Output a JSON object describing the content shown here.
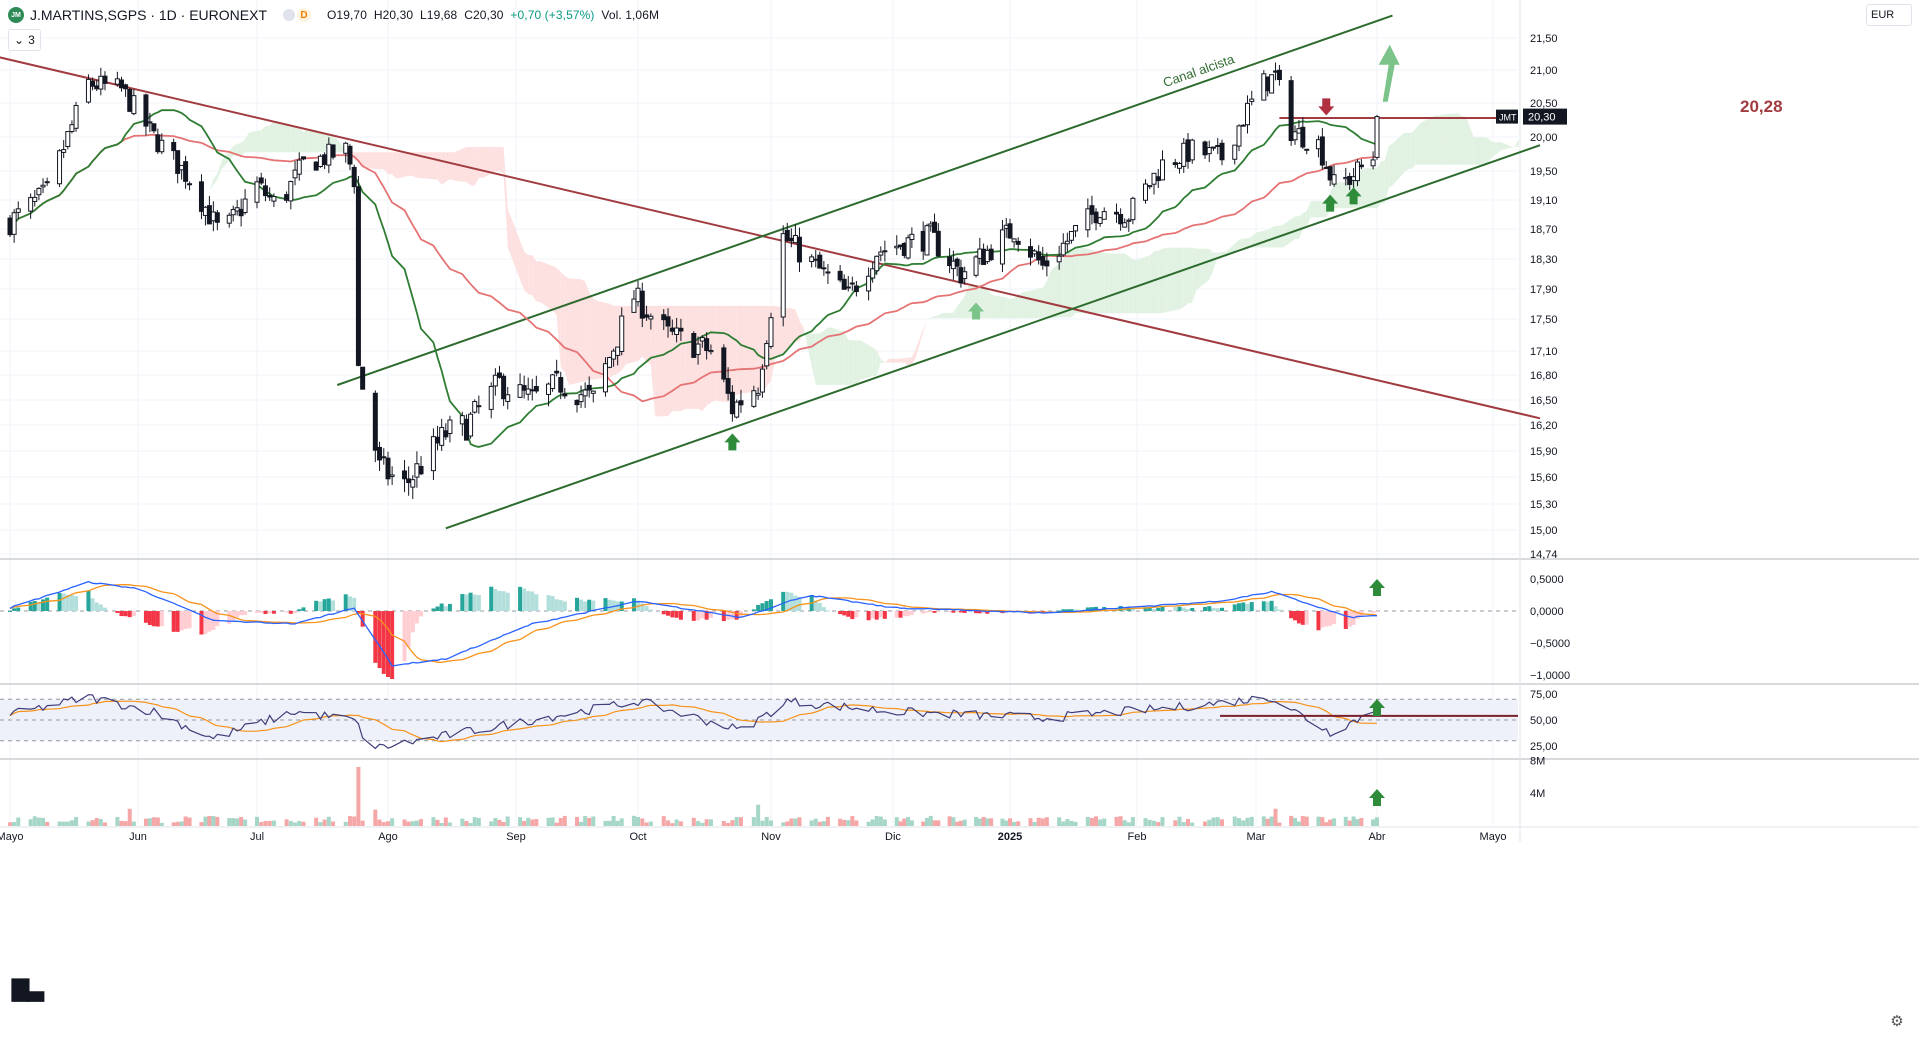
{
  "symbol": {
    "badge": "JM",
    "title": "J.MARTINS,SGPS · 1D · EURONEXT",
    "interval_badge": "D",
    "open_label": "O19,70",
    "high_label": "H20,30",
    "low_label": "L19,68",
    "close_label": "C20,30",
    "change_label": "+0,70 (+3,57%)",
    "volume_label": "Vol. 1,06M",
    "indicator_count": "3"
  },
  "currency": "EUR",
  "colors": {
    "up": "#131722",
    "down": "#131722",
    "sma_fast": "#2e7d32",
    "sma_slow": "#e57373",
    "downtrend": "#a23b40",
    "channel": "#2e6b2e",
    "hline": "#a23b40",
    "arrow_green": "#2e8b3a",
    "arrow_light": "#7cc48a",
    "arrow_red": "#b03040",
    "cloud_red": "#fde0e0",
    "cloud_green": "#e1f2e3",
    "hist_teal": "#26a69a",
    "hist_red": "#f23645",
    "macd_blue": "#2962ff",
    "signal_orange": "#f7931a",
    "rsi_line": "#3f3d7a",
    "rsi_ma": "#f7931a",
    "rsi_band": "#eef1fa"
  },
  "icons": {
    "settings": "gear-icon",
    "collapse": "chevron-down-icon",
    "logo": "tradingview-logo"
  },
  "chart_data": [
    {
      "type": "candlestick",
      "pane": "price",
      "x_axis": {
        "tick_labels": [
          "Mayo",
          "Jun",
          "Jul",
          "Ago",
          "Sep",
          "Oct",
          "Nov",
          "Dic",
          "2025",
          "Feb",
          "Mar",
          "Abr",
          "Mayo"
        ]
      },
      "y_axis": {
        "tick_labels": [
          "21,50",
          "21,00",
          "20,50",
          "20,00",
          "19,50",
          "19,10",
          "18,70",
          "18,30",
          "17,90",
          "17,50",
          "17,10",
          "16,80",
          "16,50",
          "16,20",
          "15,90",
          "15,60",
          "15,30",
          "15,00",
          "14,74"
        ],
        "range": [
          14.74,
          21.6
        ]
      },
      "price_anchors": [
        {
          "x": "2024-05-01",
          "y": 18.8
        },
        {
          "x": "2024-05-10",
          "y": 19.2
        },
        {
          "x": "2024-05-20",
          "y": 20.8
        },
        {
          "x": "2024-05-28",
          "y": 20.7
        },
        {
          "x": "2024-06-05",
          "y": 20.0
        },
        {
          "x": "2024-06-14",
          "y": 19.4
        },
        {
          "x": "2024-06-22",
          "y": 18.6
        },
        {
          "x": "2024-07-01",
          "y": 19.3
        },
        {
          "x": "2024-07-06",
          "y": 19.0
        },
        {
          "x": "2024-07-12",
          "y": 19.6
        },
        {
          "x": "2024-07-22",
          "y": 19.8
        },
        {
          "x": "2024-07-24",
          "y": 19.4
        },
        {
          "x": "2024-07-25",
          "y": 16.9
        },
        {
          "x": "2024-07-30",
          "y": 15.7
        },
        {
          "x": "2024-08-05",
          "y": 15.5
        },
        {
          "x": "2024-08-15",
          "y": 16.1
        },
        {
          "x": "2024-08-20",
          "y": 16.2
        },
        {
          "x": "2024-08-28",
          "y": 16.7
        },
        {
          "x": "2024-09-05",
          "y": 16.5
        },
        {
          "x": "2024-09-12",
          "y": 16.7
        },
        {
          "x": "2024-09-20",
          "y": 16.5
        },
        {
          "x": "2024-09-30",
          "y": 17.8
        },
        {
          "x": "2024-10-08",
          "y": 17.3
        },
        {
          "x": "2024-10-18",
          "y": 17.1
        },
        {
          "x": "2024-10-23",
          "y": 16.4
        },
        {
          "x": "2024-10-29",
          "y": 16.7
        },
        {
          "x": "2024-11-04",
          "y": 18.6
        },
        {
          "x": "2024-11-12",
          "y": 18.2
        },
        {
          "x": "2024-11-20",
          "y": 17.8
        },
        {
          "x": "2024-11-27",
          "y": 18.4
        },
        {
          "x": "2024-12-03",
          "y": 18.5
        },
        {
          "x": "2024-12-11",
          "y": 18.6
        },
        {
          "x": "2024-12-19",
          "y": 18.1
        },
        {
          "x": "2025-01-02",
          "y": 18.7
        },
        {
          "x": "2025-01-09",
          "y": 18.2
        },
        {
          "x": "2025-01-16",
          "y": 18.6
        },
        {
          "x": "2025-01-23",
          "y": 19.0
        },
        {
          "x": "2025-01-30",
          "y": 18.9
        },
        {
          "x": "2025-02-07",
          "y": 19.6
        },
        {
          "x": "2025-02-14",
          "y": 19.8
        },
        {
          "x": "2025-02-21",
          "y": 19.7
        },
        {
          "x": "2025-02-27",
          "y": 20.4
        },
        {
          "x": "2025-03-03",
          "y": 20.8
        },
        {
          "x": "2025-03-06",
          "y": 20.9
        },
        {
          "x": "2025-03-10",
          "y": 20.1
        },
        {
          "x": "2025-03-17",
          "y": 19.9
        },
        {
          "x": "2025-03-21",
          "y": 19.3
        },
        {
          "x": "2025-03-25",
          "y": 19.4
        },
        {
          "x": "2025-03-31",
          "y": 19.7
        },
        {
          "x": "2025-04-01",
          "y": 20.3
        }
      ],
      "last_close": 20.3,
      "last_label": "20,30",
      "symbol_tag": "JMT",
      "overlays": [
        {
          "name": "SMA 20",
          "kind": "line"
        },
        {
          "name": "SMA 50",
          "kind": "line"
        },
        {
          "name": "Ichimoku cloud",
          "kind": "area"
        }
      ],
      "drawings": {
        "downtrend_line": {
          "from": {
            "x": "2024-04-25",
            "y": 21.25
          },
          "to": {
            "x": "2025-05-12",
            "y": 16.28
          }
        },
        "channel_upper": {
          "from": {
            "x": "2024-07-20",
            "y": 16.68
          },
          "to": {
            "x": "2025-04-05",
            "y": 21.85
          }
        },
        "channel_lower": {
          "from": {
            "x": "2024-08-15",
            "y": 15.02
          },
          "to": {
            "x": "2025-05-12",
            "y": 19.88
          }
        },
        "channel_label": "Canal alcista",
        "resistance": {
          "y": 20.28,
          "label": "20,28",
          "from_x": "2025-03-07",
          "to_x": "2025-05-12"
        },
        "arrows": [
          {
            "x": "2024-10-23",
            "y": 16.0,
            "dir": "up",
            "style": "green"
          },
          {
            "x": "2024-12-23",
            "y": 17.6,
            "dir": "up",
            "style": "light"
          },
          {
            "x": "2025-03-20",
            "y": 19.05,
            "dir": "up",
            "style": "green"
          },
          {
            "x": "2025-03-26",
            "y": 19.15,
            "dir": "up",
            "style": "green"
          },
          {
            "x": "2025-03-19",
            "y": 20.45,
            "dir": "down",
            "style": "red"
          },
          {
            "x": "2025-04-03",
            "y": 20.7,
            "dir": "up-large",
            "style": "light"
          }
        ]
      }
    },
    {
      "type": "line",
      "pane": "MACD",
      "y_axis": {
        "tick_labels": [
          "0,5000",
          "0,0000",
          "−0,5000",
          "−1,0000"
        ],
        "range": [
          -1.05,
          0.62
        ]
      },
      "series": [
        {
          "x": "2024-05-01",
          "macd": 0.05
        },
        {
          "x": "2024-05-20",
          "macd": 0.45
        },
        {
          "x": "2024-06-01",
          "macd": 0.35
        },
        {
          "x": "2024-06-20",
          "macd": -0.15
        },
        {
          "x": "2024-07-10",
          "macd": -0.2
        },
        {
          "x": "2024-07-24",
          "macd": 0.05
        },
        {
          "x": "2024-08-02",
          "macd": -0.85
        },
        {
          "x": "2024-08-15",
          "macd": -0.75
        },
        {
          "x": "2024-09-05",
          "macd": -0.2
        },
        {
          "x": "2024-10-01",
          "macd": 0.15
        },
        {
          "x": "2024-10-25",
          "macd": -0.1
        },
        {
          "x": "2024-11-10",
          "macd": 0.25
        },
        {
          "x": "2024-12-01",
          "macd": 0.05
        },
        {
          "x": "2025-01-10",
          "macd": -0.03
        },
        {
          "x": "2025-02-20",
          "macd": 0.15
        },
        {
          "x": "2025-03-05",
          "macd": 0.3
        },
        {
          "x": "2025-03-25",
          "macd": -0.1
        },
        {
          "x": "2025-04-01",
          "macd": -0.07
        }
      ],
      "arrow": {
        "x": "2025-04-01",
        "dir": "up"
      }
    },
    {
      "type": "line",
      "pane": "RSI",
      "y_axis": {
        "tick_labels": [
          "75,00",
          "50,00",
          "25,00"
        ],
        "range": [
          15,
          85
        ]
      },
      "bands": [
        70,
        30
      ],
      "series": [
        {
          "x": "2024-05-01",
          "rsi": 55
        },
        {
          "x": "2024-05-20",
          "rsi": 72
        },
        {
          "x": "2024-06-05",
          "rsi": 58
        },
        {
          "x": "2024-06-20",
          "rsi": 32
        },
        {
          "x": "2024-07-10",
          "rsi": 58
        },
        {
          "x": "2024-07-24",
          "rsi": 50
        },
        {
          "x": "2024-07-28",
          "rsi": 22
        },
        {
          "x": "2024-08-15",
          "rsi": 35
        },
        {
          "x": "2024-09-05",
          "rsi": 50
        },
        {
          "x": "2024-10-01",
          "rsi": 68
        },
        {
          "x": "2024-10-25",
          "rsi": 40
        },
        {
          "x": "2024-11-05",
          "rsi": 68
        },
        {
          "x": "2024-12-01",
          "rsi": 58
        },
        {
          "x": "2025-01-10",
          "rsi": 52
        },
        {
          "x": "2025-02-10",
          "rsi": 62
        },
        {
          "x": "2025-03-05",
          "rsi": 72
        },
        {
          "x": "2025-03-20",
          "rsi": 38
        },
        {
          "x": "2025-04-01",
          "rsi": 60
        }
      ],
      "level_line": 54,
      "arrow": {
        "x": "2025-04-01",
        "dir": "up"
      }
    },
    {
      "type": "bar",
      "pane": "Volume",
      "y_axis": {
        "tick_labels": [
          "8M",
          "4M"
        ],
        "range": [
          0,
          8
        ]
      },
      "spikes_millions": [
        {
          "x": "2024-07-25",
          "value": 7.2
        },
        {
          "x": "2024-07-29",
          "value": 2.0
        },
        {
          "x": "2024-10-29",
          "value": 2.6
        },
        {
          "x": "2024-05-30",
          "value": 2.1
        },
        {
          "x": "2025-03-06",
          "value": 2.1
        }
      ],
      "last_volume": 1.06,
      "arrow": {
        "x": "2025-04-01",
        "dir": "up"
      }
    }
  ]
}
